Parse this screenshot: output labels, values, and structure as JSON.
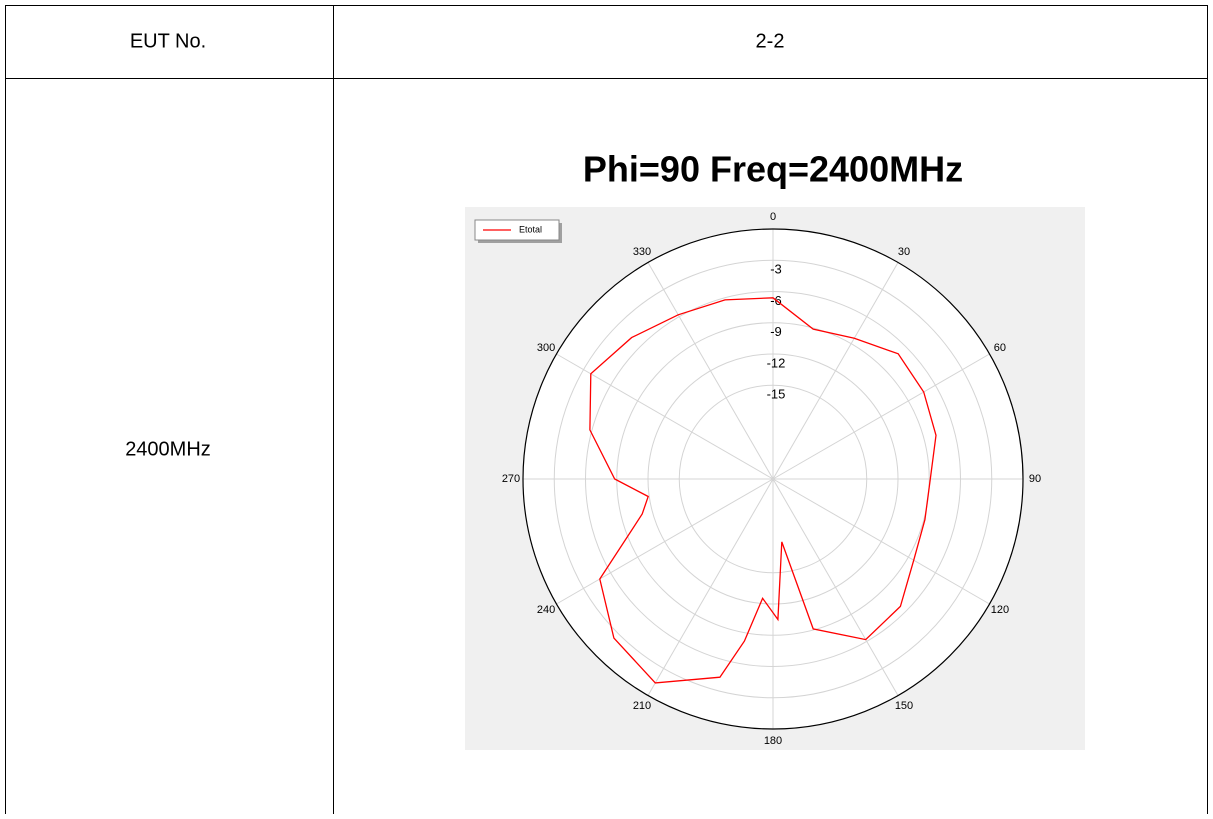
{
  "table": {
    "header": [
      "EUT No.",
      "2-2"
    ],
    "row_label": "2400MHz"
  },
  "chart_data": {
    "type": "polar",
    "title": "Phi=90 Freq=2400MHz",
    "theta": [
      0,
      15,
      30,
      45,
      60,
      75,
      90,
      105,
      120,
      135,
      150,
      165,
      172,
      178,
      185,
      190,
      195,
      210,
      225,
      240,
      255,
      262,
      270,
      285,
      300,
      315,
      330,
      345
    ],
    "series": [
      {
        "name": "Etotal",
        "color": "#ff0000",
        "values": [
          -6.6,
          -9.1,
          -8.4,
          -7.0,
          -7.3,
          -7.8,
          -8.9,
          -8.9,
          -8.4,
          -6.7,
          -6.2,
          -9.1,
          -17.9,
          -10.5,
          -12.5,
          -8.2,
          -4.3,
          -1.4,
          -2.4,
          -4.8,
          -11.0,
          -11.9,
          -8.8,
          -5.8,
          -3.8,
          -4.8,
          -5.8,
          -6.2
        ]
      }
    ],
    "thetaticks": [
      0,
      30,
      60,
      90,
      120,
      150,
      180,
      210,
      240,
      270,
      300,
      330
    ],
    "rlim": [
      -24,
      0
    ],
    "rticks": [
      -3,
      -6,
      -9,
      -12,
      -15
    ],
    "direction": "clockwise",
    "zero_location": "top",
    "grid": true,
    "legend": "upper left"
  }
}
